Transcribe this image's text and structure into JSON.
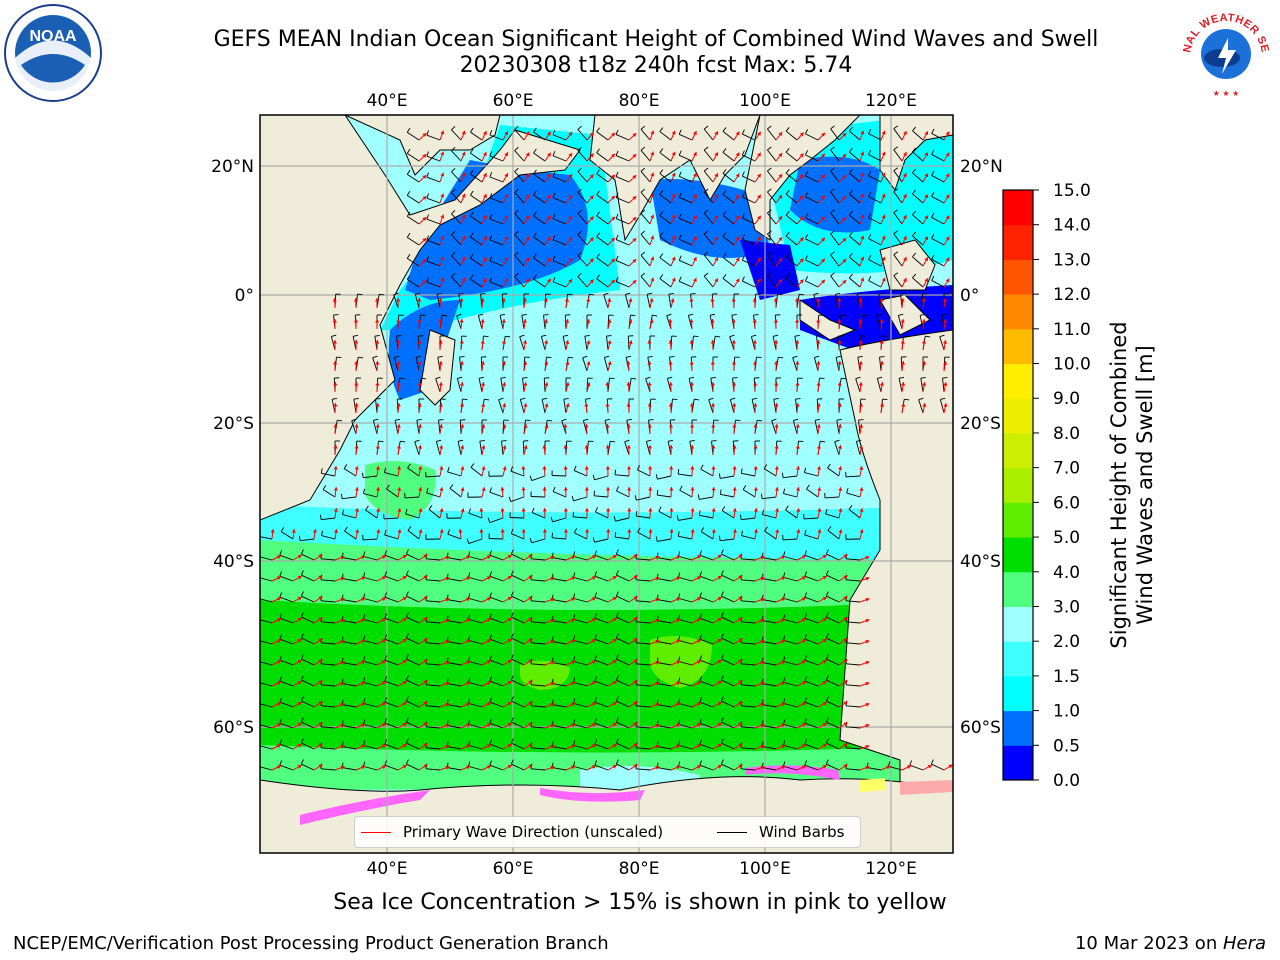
{
  "header": {
    "title_line1": "GEFS MEAN Indian Ocean Significant Height of Combined Wind Waves and Swell",
    "title_line2": "20230308 t18z 240h fcst   Max: 5.74"
  },
  "logos": {
    "noaa": {
      "text": "NOAA",
      "icon": "noaa-logo-icon"
    },
    "nws": {
      "text": "NATIONAL WEATHER SERVICE",
      "icon": "nws-logo-icon"
    }
  },
  "map": {
    "lon_top_labels": [
      "40°E",
      "60°E",
      "80°E",
      "100°E",
      "120°E"
    ],
    "lon_bottom_labels": [
      "40°E",
      "60°E",
      "80°E",
      "100°E",
      "120°E"
    ],
    "lat_left_labels": [
      "20°N",
      "0°",
      "20°S",
      "40°S",
      "60°S"
    ],
    "lat_right_labels": [
      "20°N",
      "0°",
      "20°S",
      "40°S",
      "60°S"
    ],
    "land_color": "#efecd9",
    "wave_arrow_color": "#ff0000",
    "wind_barb_color": "#000000",
    "ice_colors": [
      "#ff66ff",
      "#ffaaaa",
      "#ffff66"
    ]
  },
  "legend": {
    "wave_label": "Primary Wave Direction (unscaled)",
    "wind_label": "Wind Barbs"
  },
  "colorbar": {
    "title_line1": "Significant Height of Combined",
    "title_line2": "Wind Waves and Swell [m]",
    "ticks": [
      "0.0",
      "0.5",
      "1.0",
      "1.5",
      "2.0",
      "3.0",
      "4.0",
      "5.0",
      "6.0",
      "7.0",
      "8.0",
      "9.0",
      "10.0",
      "11.0",
      "12.0",
      "13.0",
      "14.0",
      "15.0"
    ],
    "colors": [
      "#0000ff",
      "#0070ff",
      "#00ffff",
      "#40ffff",
      "#a0ffff",
      "#50ff80",
      "#00dd00",
      "#60ee00",
      "#aaee00",
      "#ccee00",
      "#eeee00",
      "#ffee00",
      "#ffbb00",
      "#ff8800",
      "#ff5500",
      "#ff2200",
      "#ff0000"
    ]
  },
  "subtitle": "Sea Ice Concentration > 15% is shown in pink to yellow",
  "footer": {
    "left": "NCEP/EMC/Verification Post Processing Product Generation Branch",
    "date": "10 Mar 2023 on ",
    "machine": "Hera"
  }
}
